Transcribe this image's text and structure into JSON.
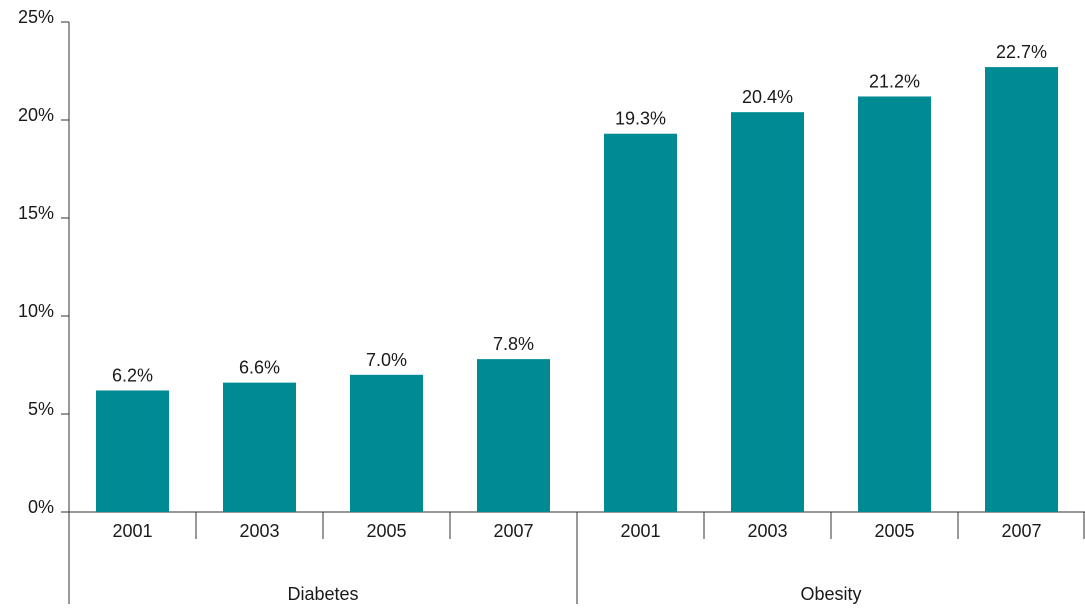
{
  "chart_data": {
    "type": "bar",
    "title": "",
    "xlabel": "",
    "ylabel": "",
    "ylim": [
      0,
      25
    ],
    "y_ticks": [
      0,
      5,
      10,
      15,
      20,
      25
    ],
    "y_tick_labels": [
      "0%",
      "5%",
      "10%",
      "15%",
      "20%",
      "25%"
    ],
    "grid": false,
    "bar_color": "#008b94",
    "axis_color": "#333333",
    "groups": [
      {
        "name": "Diabetes",
        "categories": [
          "2001",
          "2003",
          "2005",
          "2007"
        ],
        "values": [
          6.2,
          6.6,
          7.0,
          7.8
        ],
        "labels": [
          "6.2%",
          "6.6%",
          "7.0%",
          "7.8%"
        ]
      },
      {
        "name": "Obesity",
        "categories": [
          "2001",
          "2003",
          "2005",
          "2007"
        ],
        "values": [
          19.3,
          20.4,
          21.2,
          22.7
        ],
        "labels": [
          "19.3%",
          "20.4%",
          "21.2%",
          "22.7%"
        ]
      }
    ]
  }
}
